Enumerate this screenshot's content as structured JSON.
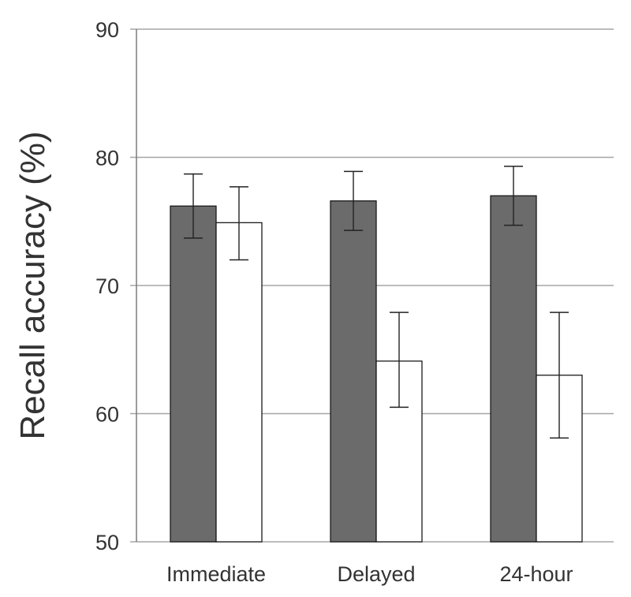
{
  "chart_data": {
    "type": "bar",
    "title": "",
    "xlabel": "",
    "ylabel": "Recall accuracy (%)",
    "ylim": [
      50,
      90
    ],
    "yticks": [
      50,
      60,
      70,
      80,
      90
    ],
    "grid": true,
    "legend": "none",
    "categories": [
      "Immediate",
      "Delayed",
      "24-hour"
    ],
    "series": [
      {
        "color": "#6b6b6b",
        "values": [
          76.2,
          76.6,
          77.0
        ],
        "error_low": [
          73.7,
          74.3,
          74.7
        ],
        "error_high": [
          78.7,
          78.9,
          79.3
        ]
      },
      {
        "color": "#ffffff",
        "values": [
          74.9,
          64.1,
          63.0
        ],
        "error_low": [
          72.0,
          60.5,
          58.1
        ],
        "error_high": [
          77.7,
          67.9,
          67.9
        ]
      }
    ]
  }
}
